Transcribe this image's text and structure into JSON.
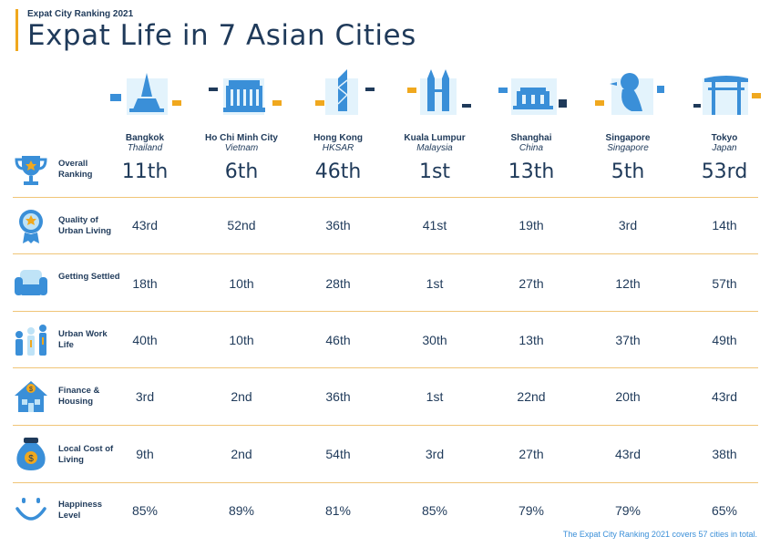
{
  "header": {
    "eyebrow": "Expat City Ranking 2021",
    "title": "Expat Life in 7 Asian Cities"
  },
  "colors": {
    "accent": "#f0a81e",
    "text": "#1f3a5a",
    "icon_blue": "#3a8fd8",
    "light_blue": "#bfe3f7",
    "divider": "#f0c577"
  },
  "cities": [
    {
      "name": "Bangkok",
      "country": "Thailand",
      "icon": "temple-icon"
    },
    {
      "name": "Ho Chi Minh City",
      "country": "Vietnam",
      "icon": "hall-icon"
    },
    {
      "name": "Hong Kong",
      "country": "HKSAR",
      "icon": "tower-icon"
    },
    {
      "name": "Kuala Lumpur",
      "country": "Malaysia",
      "icon": "twin-towers-icon"
    },
    {
      "name": "Shanghai",
      "country": "China",
      "icon": "pavilion-icon"
    },
    {
      "name": "Singapore",
      "country": "Singapore",
      "icon": "merlion-icon"
    },
    {
      "name": "Tokyo",
      "country": "Japan",
      "icon": "torii-icon"
    }
  ],
  "rows": [
    {
      "label": "Overall Ranking",
      "icon": "trophy-icon",
      "values": [
        "11th",
        "6th",
        "46th",
        "1st",
        "13th",
        "5th",
        "53rd"
      ]
    },
    {
      "label": "Quality of Urban Living",
      "icon": "medal-icon",
      "values": [
        "43rd",
        "52nd",
        "36th",
        "41st",
        "19th",
        "3rd",
        "14th"
      ]
    },
    {
      "label": "Getting Settled",
      "icon": "armchair-icon",
      "values": [
        "18th",
        "10th",
        "28th",
        "1st",
        "27th",
        "12th",
        "57th"
      ]
    },
    {
      "label": "Urban Work Life",
      "icon": "people-icon",
      "values": [
        "40th",
        "10th",
        "46th",
        "30th",
        "13th",
        "37th",
        "49th"
      ]
    },
    {
      "label": "Finance & Housing",
      "icon": "house-dollar-icon",
      "values": [
        "3rd",
        "2nd",
        "36th",
        "1st",
        "22nd",
        "20th",
        "43rd"
      ]
    },
    {
      "label": "Local Cost of Living",
      "icon": "money-bag-icon",
      "values": [
        "9th",
        "2nd",
        "54th",
        "3rd",
        "27th",
        "43rd",
        "38th"
      ]
    },
    {
      "label": "Happiness Level",
      "icon": "smiley-icon",
      "values": [
        "85%",
        "89%",
        "81%",
        "85%",
        "79%",
        "79%",
        "65%"
      ]
    }
  ],
  "footer": "The Expat City Ranking 2021 covers 57 cities in total."
}
